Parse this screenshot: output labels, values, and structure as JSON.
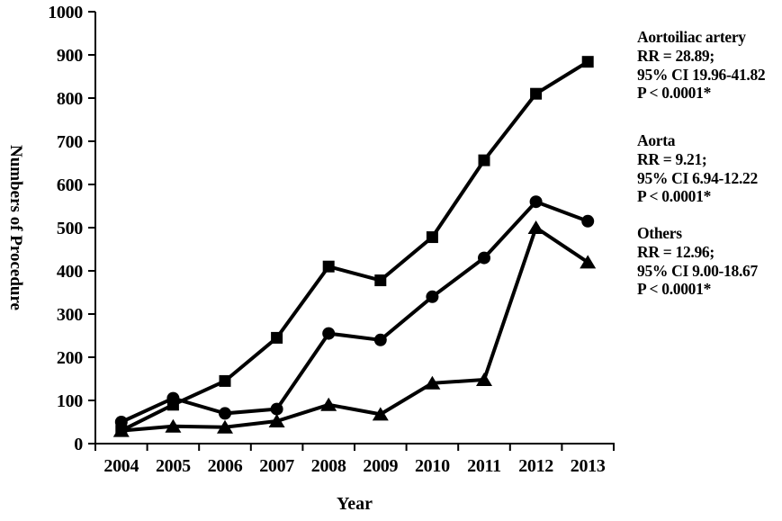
{
  "chart_data": {
    "type": "line",
    "title": "",
    "xlabel": "Year",
    "ylabel": "Numbers of Procedure",
    "ylim": [
      0,
      1000
    ],
    "ytick_step": 100,
    "grid": false,
    "line_color": "#000000",
    "background": "#ffffff",
    "legend_position": "right-side text annotations",
    "categories": [
      "2004",
      "2005",
      "2006",
      "2007",
      "2008",
      "2009",
      "2010",
      "2011",
      "2012",
      "2013"
    ],
    "series": [
      {
        "name": "Aortoiliac artery",
        "marker": "square",
        "values": [
          30,
          90,
          145,
          245,
          410,
          378,
          478,
          656,
          810,
          884
        ]
      },
      {
        "name": "Aorta",
        "marker": "circle",
        "values": [
          50,
          105,
          70,
          80,
          255,
          240,
          340,
          430,
          560,
          515
        ]
      },
      {
        "name": "Others",
        "marker": "triangle",
        "values": [
          30,
          40,
          38,
          52,
          90,
          68,
          140,
          148,
          500,
          420
        ]
      }
    ]
  },
  "annotations": [
    {
      "title": "Aortoiliac artery",
      "rr": "RR = 28.89;",
      "ci": "95% CI 19.96-41.82",
      "p": "P < 0.0001*"
    },
    {
      "title": "Aorta",
      "rr": "RR = 9.21;",
      "ci": "95% CI 6.94-12.22",
      "p": "P < 0.0001*"
    },
    {
      "title": "Others",
      "rr": "RR = 12.96;",
      "ci": "95% CI 9.00-18.67",
      "p": "P < 0.0001*"
    }
  ]
}
